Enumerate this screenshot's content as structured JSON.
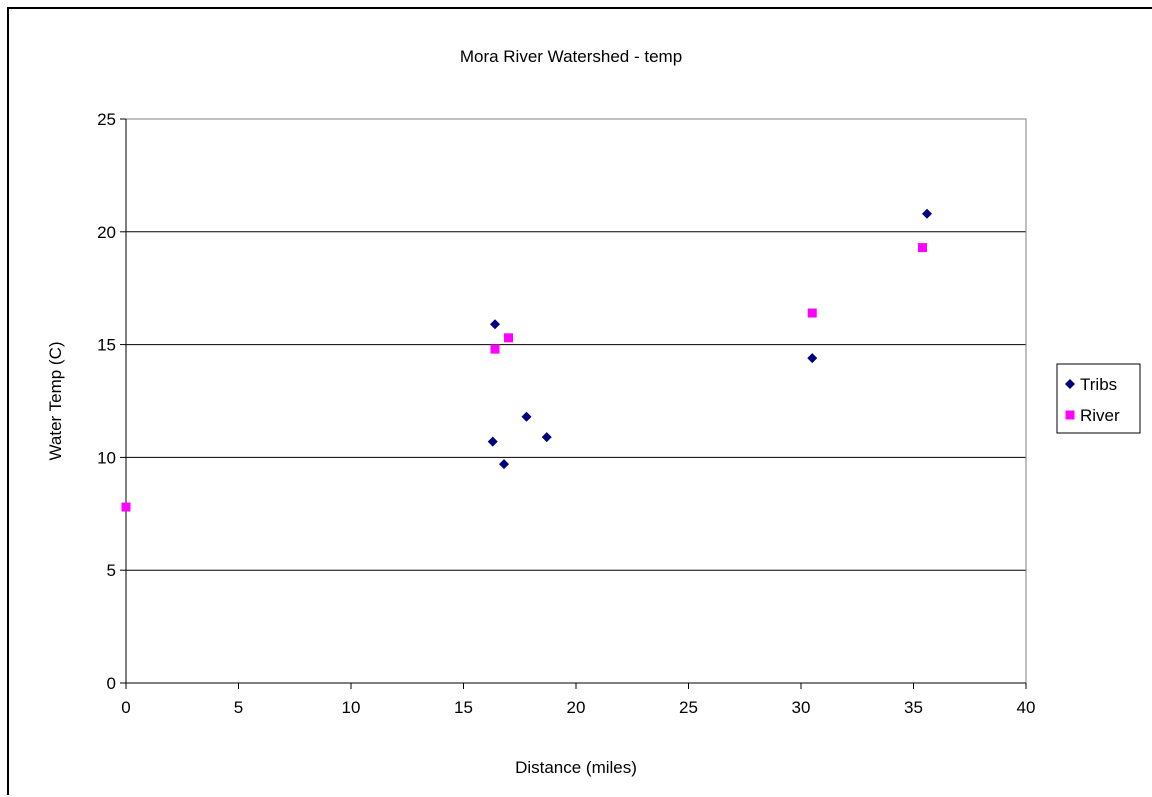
{
  "chart_data": {
    "type": "scatter",
    "title": "Mora River Watershed - temp",
    "xlabel": "Distance (miles)",
    "ylabel": "Water Temp (C)",
    "xlim": [
      0,
      40
    ],
    "ylim": [
      0,
      25
    ],
    "x_ticks": [
      "0",
      "5",
      "10",
      "15",
      "20",
      "25",
      "30",
      "35",
      "40"
    ],
    "y_ticks": [
      "0",
      "5",
      "10",
      "15",
      "20",
      "25"
    ],
    "grid": "horizontal",
    "legend_position": "right",
    "series": [
      {
        "name": "Tribs",
        "marker": "diamond",
        "color": "#000080",
        "points": [
          {
            "x": 16.3,
            "y": 10.7
          },
          {
            "x": 16.4,
            "y": 15.9
          },
          {
            "x": 16.8,
            "y": 9.7
          },
          {
            "x": 17.8,
            "y": 11.8
          },
          {
            "x": 18.7,
            "y": 10.9
          },
          {
            "x": 30.5,
            "y": 14.4
          },
          {
            "x": 35.6,
            "y": 20.8
          }
        ]
      },
      {
        "name": "River",
        "marker": "square",
        "color": "#FF00FF",
        "points": [
          {
            "x": 0.0,
            "y": 7.8
          },
          {
            "x": 16.4,
            "y": 14.8
          },
          {
            "x": 17.0,
            "y": 15.3
          },
          {
            "x": 30.5,
            "y": 16.4
          },
          {
            "x": 35.4,
            "y": 19.3
          }
        ]
      }
    ]
  }
}
